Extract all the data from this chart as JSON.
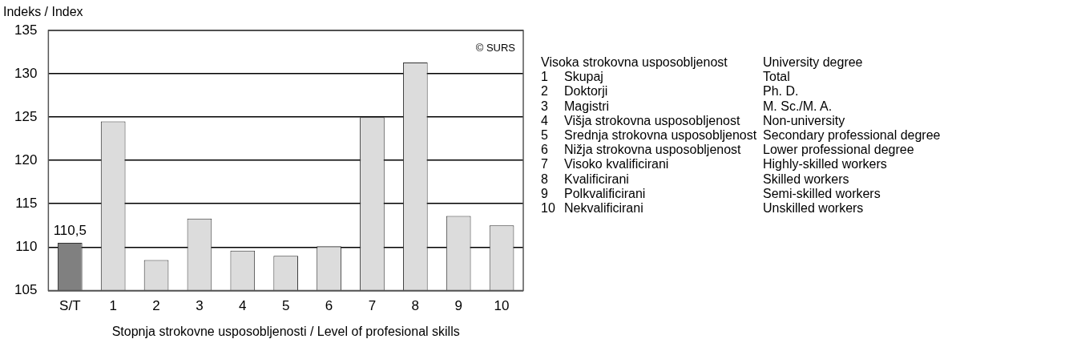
{
  "chart_data": {
    "type": "bar",
    "ylabel": "Indeks / Index",
    "xlabel": "Stopnja strokovne usposobljenosti / Level of profesional skills",
    "categories": [
      "S/T",
      "1",
      "2",
      "3",
      "4",
      "5",
      "6",
      "7",
      "8",
      "9",
      "10"
    ],
    "values": [
      110.5,
      124.5,
      108.5,
      113.3,
      109.6,
      109.0,
      110.1,
      125.0,
      131.3,
      113.6,
      112.5
    ],
    "colors": [
      "#808080",
      "#dcdcdc",
      "#dcdcdc",
      "#dcdcdc",
      "#dcdcdc",
      "#dcdcdc",
      "#dcdcdc",
      "#dcdcdc",
      "#dcdcdc",
      "#dcdcdc",
      "#dcdcdc"
    ],
    "value_labels": [
      "110,5",
      null,
      null,
      null,
      null,
      null,
      null,
      null,
      null,
      null,
      null
    ],
    "ylim": [
      105,
      135
    ],
    "yticks": [
      105,
      110,
      115,
      120,
      125,
      130,
      135
    ],
    "grid": "y",
    "legend": false,
    "annotations": [
      "© SURS",
      "Visoka strokovna usposobljenost",
      "University degree",
      "1",
      "Skupaj",
      "Total",
      "2",
      "Doktorji",
      "Ph. D.",
      "3",
      "Magistri",
      "M. Sc./M. A.",
      "4",
      "Višja strokovna usposobljenost",
      "Non-university",
      "5",
      "Srednja strokovna usposobljenost",
      "Secondary professional degree",
      "6",
      "Nižja strokovna usposobljenost",
      "Lower professional degree",
      "7",
      "Visoko kvalificirani",
      "Highly-skilled workers",
      "8",
      "Kvalificirani",
      "Skilled workers",
      "9",
      "Polkvalificirani",
      "Semi-skilled workers",
      "10",
      "Nekvalificirani",
      "Unskilled workers"
    ]
  }
}
